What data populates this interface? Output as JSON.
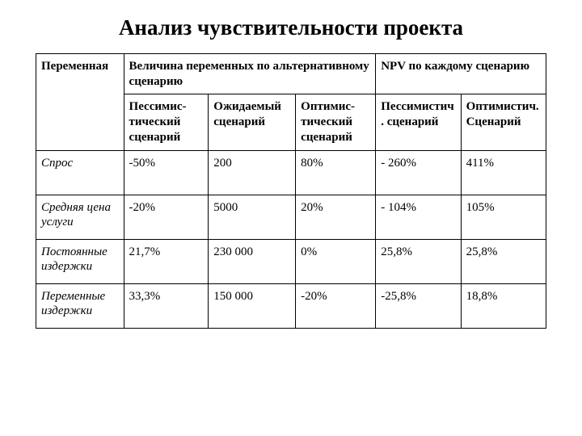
{
  "title": "Анализ чувствительности проекта",
  "table": {
    "type": "table",
    "background_color": "#ffffff",
    "border_color": "#000000",
    "header_font_weight": 700,
    "row_label_font_style": "italic",
    "font_family": "Times New Roman",
    "cell_fontsize": 15,
    "title_fontsize": 27,
    "col_widths_pct": [
      17.2,
      16.6,
      17.1,
      15.7,
      16.7,
      16.7
    ],
    "header_row1": {
      "c1": "Переменная",
      "c2": "Величина переменных по альтернативному сценарию",
      "c3": "NPV по каждому сценарию"
    },
    "header_row2": {
      "c2": "Пессимис-тический сценарий",
      "c3": "Ожидаемый сценарий",
      "c4": "Оптимис-тический сценарий",
      "c5": "Пессимистич. сценарий",
      "c6": "Оптимистич. Сценарий"
    },
    "rows": [
      {
        "label": "Спрос",
        "pess": "-50%",
        "exp": "200",
        "opt": "80%",
        "npv_pess": "- 260%",
        "npv_opt": "411%"
      },
      {
        "label": "Средняя цена услуги",
        "pess": "-20%",
        "exp": "5000",
        "opt": "20%",
        "npv_pess": "- 104%",
        "npv_opt": "105%"
      },
      {
        "label": "Постоянные издержки",
        "pess": "21,7%",
        "exp": "230 000",
        "opt": "0%",
        "npv_pess": "25,8%",
        "npv_opt": "25,8%"
      },
      {
        "label": "Переменные издержки",
        "pess": "33,3%",
        "exp": "150 000",
        "opt": "-20%",
        "npv_pess": "-25,8%",
        "npv_opt": "18,8%"
      }
    ]
  }
}
